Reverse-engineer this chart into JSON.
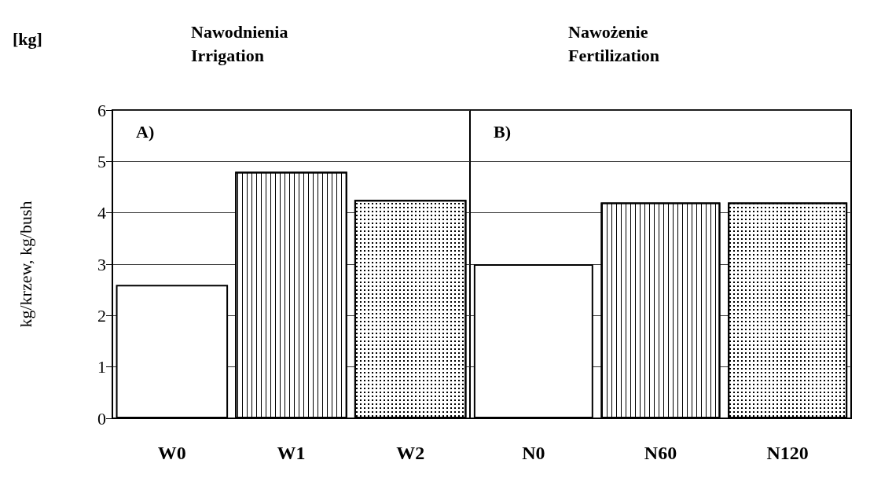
{
  "chart_data": [
    {
      "type": "bar",
      "title": "Nawodnienia\nIrrigation",
      "ylabel": "kg/krzew, kg/bush",
      "annotations": [
        "[kg]",
        "A)"
      ],
      "categories": [
        "W0",
        "W1",
        "W2"
      ],
      "values": [
        2.6,
        4.8,
        4.25
      ],
      "colors": [
        "#ffffff",
        "#ffffff",
        "#ffffff"
      ],
      "ylim": [
        0,
        6
      ],
      "yticks": [
        0,
        1,
        2,
        3,
        4,
        5,
        6
      ],
      "grid": "y"
    },
    {
      "type": "bar",
      "title": "Nawożenie\nFertilization",
      "annotations": [
        "B)"
      ],
      "categories": [
        "N0",
        "N60",
        "N120"
      ],
      "values": [
        3.0,
        4.2,
        4.2
      ],
      "colors": [
        "#ffffff",
        "#ffffff",
        "#ffffff"
      ],
      "ylim": [
        0,
        6
      ],
      "yticks": [
        0,
        1,
        2,
        3,
        4,
        5,
        6
      ],
      "grid": "y",
      "tick_labels": "x"
    }
  ]
}
